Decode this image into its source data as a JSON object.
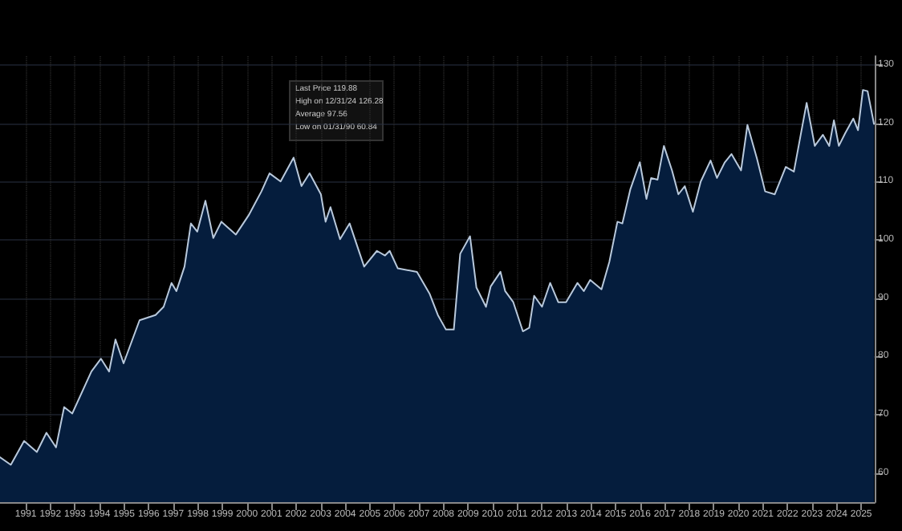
{
  "chart_data": {
    "type": "area",
    "x": [
      1989.75,
      1990.19,
      1990.73,
      1991.25,
      1991.64,
      1992.03,
      1992.36,
      1992.69,
      1993.47,
      1993.86,
      1994.19,
      1994.45,
      1994.78,
      1995.43,
      1996.08,
      1996.41,
      1996.73,
      1996.93,
      1997.26,
      1997.52,
      1997.78,
      1998.11,
      1998.43,
      1998.76,
      1999.35,
      1999.87,
      2000.39,
      2000.72,
      2001.17,
      2001.7,
      2002.02,
      2002.35,
      2002.81,
      2003.0,
      2003.2,
      2003.59,
      2003.98,
      2004.57,
      2005.09,
      2005.42,
      2005.61,
      2005.94,
      2006.72,
      2007.24,
      2007.57,
      2007.9,
      2008.22,
      2008.48,
      2008.88,
      2009.14,
      2009.53,
      2009.72,
      2010.12,
      2010.31,
      2010.64,
      2011.03,
      2011.29,
      2011.49,
      2011.81,
      2012.14,
      2012.47,
      2012.79,
      2013.25,
      2013.51,
      2013.77,
      2014.23,
      2014.55,
      2014.88,
      2015.08,
      2015.4,
      2015.79,
      2016.06,
      2016.25,
      2016.51,
      2016.77,
      2017.1,
      2017.36,
      2017.62,
      2017.95,
      2018.27,
      2018.67,
      2018.93,
      2019.25,
      2019.52,
      2019.91,
      2020.17,
      2020.56,
      2020.89,
      2021.28,
      2021.73,
      2022.06,
      2022.58,
      2022.91,
      2023.24,
      2023.5,
      2023.69,
      2023.89,
      2024.15,
      2024.48,
      2024.67,
      2024.87,
      2025.06,
      2025.32
    ],
    "series": [
      {
        "color": "#b9c9dc",
        "values": [
          62.7,
          61.4,
          65.5,
          63.6,
          66.9,
          64.4,
          71.3,
          70.2,
          77.4,
          79.6,
          77.4,
          82.9,
          78.8,
          86.2,
          87.1,
          88.5,
          92.6,
          91.2,
          95.4,
          102.8,
          101.4,
          106.7,
          100.3,
          103.1,
          100.9,
          104.2,
          108.3,
          111.4,
          110.0,
          114.1,
          109.2,
          111.4,
          107.8,
          103.1,
          105.6,
          100.1,
          102.8,
          95.4,
          98.1,
          97.3,
          98.1,
          95.1,
          94.5,
          90.7,
          87.1,
          84.6,
          84.6,
          97.6,
          100.6,
          91.8,
          88.5,
          92.0,
          94.5,
          91.2,
          89.3,
          84.3,
          84.9,
          90.4,
          88.5,
          92.6,
          89.3,
          89.3,
          92.6,
          91.2,
          93.1,
          91.5,
          96.2,
          103.1,
          102.8,
          108.6,
          113.3,
          107.0,
          110.6,
          110.3,
          116.1,
          111.9,
          107.8,
          109.2,
          104.8,
          110.0,
          113.6,
          110.6,
          113.3,
          114.7,
          111.9,
          119.7,
          113.9,
          108.3,
          107.8,
          112.5,
          111.7,
          123.5,
          116.1,
          118.0,
          116.1,
          120.5,
          116.1,
          118.3,
          120.8,
          118.8,
          125.7,
          125.5,
          119.88
        ]
      }
    ],
    "xlim": [
      1989.75,
      2025.35
    ],
    "xticks": [
      {
        "value": 1990.8,
        "label": "1991"
      },
      {
        "value": 1991.8,
        "label": "1992"
      },
      {
        "value": 1992.8,
        "label": "1993"
      },
      {
        "value": 1993.8,
        "label": "1994"
      },
      {
        "value": 1994.8,
        "label": "1995"
      },
      {
        "value": 1995.8,
        "label": "1996"
      },
      {
        "value": 1996.8,
        "label": "1997"
      },
      {
        "value": 1997.8,
        "label": "1998"
      },
      {
        "value": 1998.8,
        "label": "1999"
      },
      {
        "value": 1999.8,
        "label": "2000"
      },
      {
        "value": 2000.8,
        "label": "2001"
      },
      {
        "value": 2001.8,
        "label": "2002"
      },
      {
        "value": 2002.8,
        "label": "2003"
      },
      {
        "value": 2003.8,
        "label": "2004"
      },
      {
        "value": 2004.8,
        "label": "2005"
      },
      {
        "value": 2005.8,
        "label": "2006"
      },
      {
        "value": 2006.8,
        "label": "2007"
      },
      {
        "value": 2007.8,
        "label": "2008"
      },
      {
        "value": 2008.8,
        "label": "2009"
      },
      {
        "value": 2009.8,
        "label": "2010"
      },
      {
        "value": 2010.8,
        "label": "2011"
      },
      {
        "value": 2011.8,
        "label": "2012"
      },
      {
        "value": 2012.8,
        "label": "2013"
      },
      {
        "value": 2013.8,
        "label": "2014"
      },
      {
        "value": 2014.8,
        "label": "2015"
      },
      {
        "value": 2015.8,
        "label": "2016"
      },
      {
        "value": 2016.8,
        "label": "2017"
      },
      {
        "value": 2017.8,
        "label": "2018"
      },
      {
        "value": 2018.8,
        "label": "2019"
      },
      {
        "value": 2019.8,
        "label": "2020"
      },
      {
        "value": 2020.8,
        "label": "2021"
      },
      {
        "value": 2021.8,
        "label": "2022"
      },
      {
        "value": 2022.8,
        "label": "2023"
      },
      {
        "value": 2023.8,
        "label": "2024"
      },
      {
        "value": 2024.8,
        "label": "2025"
      }
    ],
    "ylim": [
      55,
      131.5
    ],
    "yticks": [
      60,
      70,
      80,
      90,
      100,
      110,
      120,
      130
    ],
    "grid": true,
    "marker": "none",
    "line_style": "solid",
    "annotations": [
      "Last Price 119.88",
      "High on 12/31/24 126.28",
      "Average 97.56",
      "Low on 01/31/90 60.84"
    ]
  }
}
